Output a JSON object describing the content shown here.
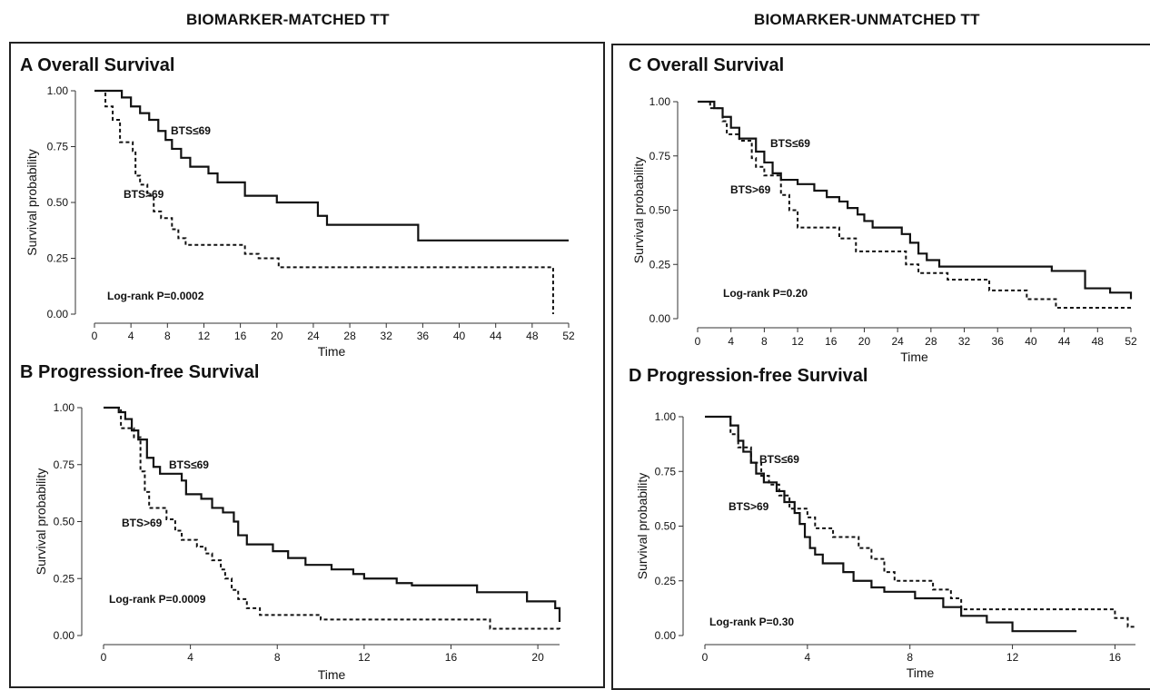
{
  "headers": {
    "left": "BIOMARKER-MATCHED TT",
    "right": "BIOMARKER-UNMATCHED TT"
  },
  "chart_data": [
    {
      "id": "A",
      "type": "line",
      "title": "A Overall Survival",
      "xlabel": "Time",
      "ylabel": "Survival probability",
      "xlim": [
        0,
        52
      ],
      "ylim": [
        0,
        1
      ],
      "xticks": [
        "0",
        "4",
        "8",
        "12",
        "16",
        "20",
        "24",
        "28",
        "32",
        "36",
        "40",
        "44",
        "48",
        "52"
      ],
      "yticks": [
        "0.00",
        "0.25",
        "0.50",
        "0.75",
        "1.00"
      ],
      "annotation": "Log-rank P=0.0002",
      "series": [
        {
          "name": "BTS≤69",
          "style": "solid",
          "steps": [
            [
              0,
              1
            ],
            [
              3,
              0.97
            ],
            [
              4,
              0.93
            ],
            [
              5,
              0.9
            ],
            [
              6,
              0.87
            ],
            [
              7,
              0.82
            ],
            [
              7.8,
              0.78
            ],
            [
              8.5,
              0.74
            ],
            [
              9.5,
              0.7
            ],
            [
              10.5,
              0.66
            ],
            [
              12.5,
              0.63
            ],
            [
              13.5,
              0.59
            ],
            [
              16.5,
              0.53
            ],
            [
              20,
              0.5
            ],
            [
              24.5,
              0.44
            ],
            [
              25.5,
              0.4
            ],
            [
              35.5,
              0.33
            ],
            [
              52,
              0.33
            ]
          ]
        },
        {
          "name": "BTS>69",
          "style": "dotted",
          "steps": [
            [
              0,
              1
            ],
            [
              1.2,
              0.93
            ],
            [
              2,
              0.87
            ],
            [
              2.8,
              0.77
            ],
            [
              4.2,
              0.73
            ],
            [
              4.5,
              0.62
            ],
            [
              5,
              0.58
            ],
            [
              5.8,
              0.53
            ],
            [
              6.5,
              0.46
            ],
            [
              7.3,
              0.43
            ],
            [
              8.5,
              0.38
            ],
            [
              9.2,
              0.34
            ],
            [
              10,
              0.31
            ],
            [
              16.5,
              0.27
            ],
            [
              18,
              0.25
            ],
            [
              20.2,
              0.21
            ],
            [
              50.3,
              0.21
            ],
            [
              50.3,
              0.0
            ]
          ]
        }
      ]
    },
    {
      "id": "B",
      "type": "line",
      "title": "B Progression-free Survival",
      "xlabel": "Time",
      "ylabel": "Survival probability",
      "xlim": [
        0,
        21
      ],
      "ylim": [
        0,
        1
      ],
      "xticks": [
        "0",
        "4",
        "8",
        "12",
        "16",
        "20"
      ],
      "yticks": [
        "0.00",
        "0.25",
        "0.50",
        "0.75",
        "1.00"
      ],
      "annotation": "Log-rank P=0.0009",
      "series": [
        {
          "name": "BTS≤69",
          "style": "solid",
          "steps": [
            [
              0,
              1
            ],
            [
              0.7,
              0.98
            ],
            [
              1,
              0.95
            ],
            [
              1.3,
              0.9
            ],
            [
              1.6,
              0.86
            ],
            [
              2,
              0.78
            ],
            [
              2.3,
              0.74
            ],
            [
              2.6,
              0.71
            ],
            [
              3.6,
              0.68
            ],
            [
              3.8,
              0.62
            ],
            [
              4.5,
              0.6
            ],
            [
              5,
              0.56
            ],
            [
              5.5,
              0.54
            ],
            [
              6,
              0.5
            ],
            [
              6.2,
              0.44
            ],
            [
              6.6,
              0.4
            ],
            [
              7.8,
              0.37
            ],
            [
              8.5,
              0.34
            ],
            [
              9.3,
              0.31
            ],
            [
              10.5,
              0.29
            ],
            [
              11.5,
              0.27
            ],
            [
              12,
              0.25
            ],
            [
              13.5,
              0.23
            ],
            [
              14.2,
              0.22
            ],
            [
              17.2,
              0.19
            ],
            [
              19.5,
              0.15
            ],
            [
              20.8,
              0.12
            ],
            [
              21,
              0.06
            ]
          ]
        },
        {
          "name": "BTS>69",
          "style": "dotted",
          "steps": [
            [
              0,
              1
            ],
            [
              0.8,
              0.91
            ],
            [
              1.4,
              0.87
            ],
            [
              1.7,
              0.72
            ],
            [
              1.9,
              0.63
            ],
            [
              2.1,
              0.56
            ],
            [
              2.9,
              0.51
            ],
            [
              3.3,
              0.46
            ],
            [
              3.6,
              0.42
            ],
            [
              4.3,
              0.39
            ],
            [
              4.7,
              0.36
            ],
            [
              5,
              0.33
            ],
            [
              5.4,
              0.29
            ],
            [
              5.6,
              0.25
            ],
            [
              5.9,
              0.2
            ],
            [
              6.2,
              0.16
            ],
            [
              6.6,
              0.12
            ],
            [
              7.2,
              0.09
            ],
            [
              10,
              0.07
            ],
            [
              17.8,
              0.03
            ],
            [
              21,
              0.02
            ]
          ]
        }
      ]
    },
    {
      "id": "C",
      "type": "line",
      "title": "C Overall Survival",
      "xlabel": "Time",
      "ylabel": "Survival probability",
      "xlim": [
        0,
        52
      ],
      "ylim": [
        0,
        1
      ],
      "xticks": [
        "0",
        "4",
        "8",
        "12",
        "16",
        "20",
        "24",
        "28",
        "32",
        "36",
        "40",
        "44",
        "48",
        "52"
      ],
      "yticks": [
        "0.00",
        "0.25",
        "0.50",
        "0.75",
        "1.00"
      ],
      "annotation": "Log-rank P=0.20",
      "series": [
        {
          "name": "BTS≤69",
          "style": "solid",
          "steps": [
            [
              0,
              1
            ],
            [
              2,
              0.97
            ],
            [
              3,
              0.93
            ],
            [
              4,
              0.88
            ],
            [
              5,
              0.83
            ],
            [
              7,
              0.77
            ],
            [
              8,
              0.72
            ],
            [
              9,
              0.67
            ],
            [
              10,
              0.64
            ],
            [
              12,
              0.62
            ],
            [
              14,
              0.59
            ],
            [
              15.5,
              0.56
            ],
            [
              17,
              0.54
            ],
            [
              18,
              0.51
            ],
            [
              19.2,
              0.48
            ],
            [
              20,
              0.45
            ],
            [
              21,
              0.42
            ],
            [
              24.5,
              0.39
            ],
            [
              25.5,
              0.35
            ],
            [
              26.5,
              0.3
            ],
            [
              27.5,
              0.27
            ],
            [
              29,
              0.24
            ],
            [
              42.5,
              0.22
            ],
            [
              46.5,
              0.14
            ],
            [
              49.5,
              0.12
            ],
            [
              52,
              0.09
            ]
          ]
        },
        {
          "name": "BTS>69",
          "style": "dotted",
          "steps": [
            [
              0,
              1
            ],
            [
              1.5,
              0.97
            ],
            [
              3,
              0.91
            ],
            [
              3.5,
              0.85
            ],
            [
              5,
              0.82
            ],
            [
              6.5,
              0.74
            ],
            [
              7,
              0.7
            ],
            [
              8,
              0.66
            ],
            [
              10,
              0.57
            ],
            [
              11,
              0.5
            ],
            [
              12,
              0.42
            ],
            [
              17,
              0.37
            ],
            [
              19,
              0.31
            ],
            [
              25,
              0.25
            ],
            [
              26.5,
              0.21
            ],
            [
              30,
              0.18
            ],
            [
              35,
              0.13
            ],
            [
              39.5,
              0.09
            ],
            [
              43,
              0.05
            ],
            [
              52,
              0.05
            ]
          ]
        }
      ]
    },
    {
      "id": "D",
      "type": "line",
      "title": "D Progression-free Survival",
      "xlabel": "Time",
      "ylabel": "Survival probability",
      "xlim": [
        0,
        16.8
      ],
      "ylim": [
        0,
        1
      ],
      "xticks": [
        "0",
        "4",
        "8",
        "12",
        "16"
      ],
      "yticks": [
        "0.00",
        "0.25",
        "0.50",
        "0.75",
        "1.00"
      ],
      "annotation": "Log-rank P=0.30",
      "series": [
        {
          "name": "BTS≤69",
          "style": "solid",
          "steps": [
            [
              0,
              1
            ],
            [
              1,
              0.96
            ],
            [
              1.3,
              0.89
            ],
            [
              1.5,
              0.84
            ],
            [
              1.8,
              0.79
            ],
            [
              2,
              0.74
            ],
            [
              2.3,
              0.7
            ],
            [
              2.8,
              0.66
            ],
            [
              3.1,
              0.61
            ],
            [
              3.5,
              0.56
            ],
            [
              3.7,
              0.51
            ],
            [
              3.9,
              0.45
            ],
            [
              4.1,
              0.4
            ],
            [
              4.3,
              0.37
            ],
            [
              4.6,
              0.33
            ],
            [
              5.4,
              0.29
            ],
            [
              5.8,
              0.25
            ],
            [
              6.5,
              0.22
            ],
            [
              7,
              0.2
            ],
            [
              8.2,
              0.17
            ],
            [
              9.3,
              0.13
            ],
            [
              10,
              0.09
            ],
            [
              11,
              0.06
            ],
            [
              12,
              0.02
            ],
            [
              14.5,
              0.02
            ]
          ]
        },
        {
          "name": "BTS>69",
          "style": "dotted",
          "steps": [
            [
              0,
              1
            ],
            [
              1,
              0.92
            ],
            [
              1.3,
              0.86
            ],
            [
              1.8,
              0.79
            ],
            [
              2.2,
              0.73
            ],
            [
              2.5,
              0.69
            ],
            [
              2.9,
              0.64
            ],
            [
              3.3,
              0.58
            ],
            [
              4,
              0.54
            ],
            [
              4.3,
              0.49
            ],
            [
              5,
              0.45
            ],
            [
              6,
              0.4
            ],
            [
              6.5,
              0.35
            ],
            [
              7,
              0.29
            ],
            [
              7.4,
              0.25
            ],
            [
              8.9,
              0.21
            ],
            [
              9.6,
              0.17
            ],
            [
              10,
              0.12
            ],
            [
              16,
              0.08
            ],
            [
              16.5,
              0.04
            ],
            [
              16.8,
              0.04
            ]
          ]
        }
      ]
    }
  ]
}
